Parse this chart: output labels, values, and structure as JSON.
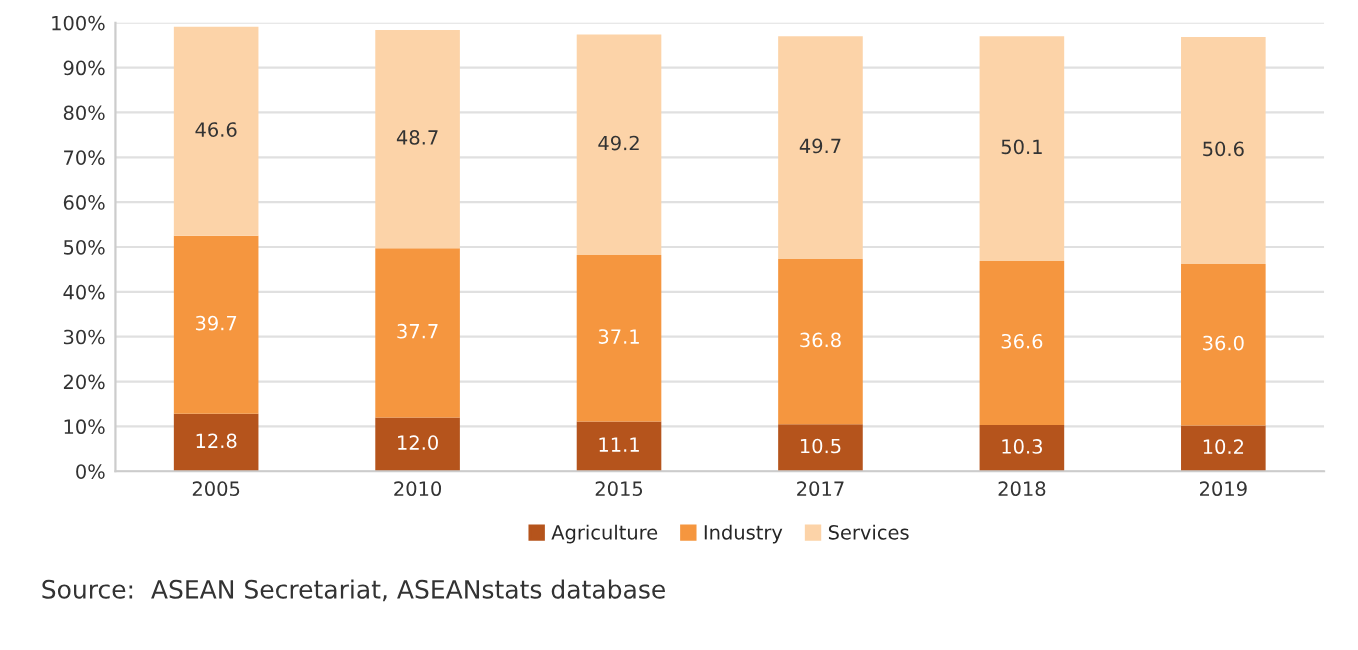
{
  "chart_data": {
    "type": "bar",
    "stacked": true,
    "categories": [
      "2005",
      "2010",
      "2015",
      "2017",
      "2018",
      "2019"
    ],
    "series": [
      {
        "name": "Agriculture",
        "color": "#b5541c",
        "values": [
          12.8,
          12.0,
          11.1,
          10.5,
          10.3,
          10.2
        ],
        "value_labels": [
          "12.8",
          "12.0",
          "11.1",
          "10.5",
          "10.3",
          "10.2"
        ]
      },
      {
        "name": "Industry",
        "color": "#f5963f",
        "values": [
          39.7,
          37.7,
          37.1,
          36.8,
          36.6,
          36.0
        ],
        "value_labels": [
          "39.7",
          "37.7",
          "37.1",
          "36.8",
          "36.6",
          "36.0"
        ]
      },
      {
        "name": "Services",
        "color": "#fcd3a8",
        "values": [
          46.6,
          48.7,
          49.2,
          49.7,
          50.1,
          50.6
        ],
        "value_labels": [
          "46.6",
          "48.7",
          "49.2",
          "49.7",
          "50.1",
          "50.6"
        ]
      }
    ],
    "ylim": [
      0,
      100
    ],
    "yticks": [
      {
        "value": 0,
        "label": "0%"
      },
      {
        "value": 10,
        "label": "10%"
      },
      {
        "value": 20,
        "label": "20%"
      },
      {
        "value": 30,
        "label": "30%"
      },
      {
        "value": 40,
        "label": "40%"
      },
      {
        "value": 50,
        "label": "50%"
      },
      {
        "value": 60,
        "label": "60%"
      },
      {
        "value": 70,
        "label": "70%"
      },
      {
        "value": 80,
        "label": "80%"
      },
      {
        "value": 90,
        "label": "90%"
      },
      {
        "value": 100,
        "label": "100%"
      }
    ],
    "grid": "y",
    "legend": "bottom",
    "annotations": [
      "Source:  ASEAN Secretariat, ASEANstats database"
    ]
  }
}
